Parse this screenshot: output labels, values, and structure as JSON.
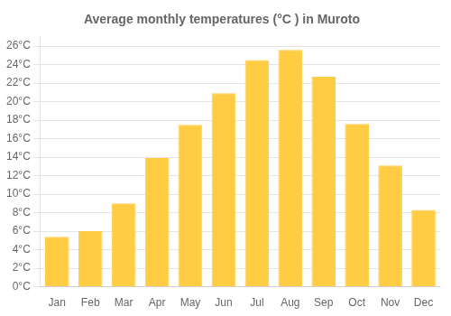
{
  "chart_data": {
    "type": "bar",
    "title": "Average monthly temperatures (°C ) in Muroto",
    "categories": [
      "Jan",
      "Feb",
      "Mar",
      "Apr",
      "May",
      "Jun",
      "Jul",
      "Aug",
      "Sep",
      "Oct",
      "Nov",
      "Dec"
    ],
    "values": [
      5.4,
      6.0,
      9.0,
      13.9,
      17.5,
      20.9,
      24.5,
      25.6,
      22.7,
      17.6,
      13.1,
      8.3
    ],
    "color": "#FFCC44",
    "ylim": [
      0,
      27
    ],
    "yticks": [
      {
        "value": 0,
        "label": "0°C"
      },
      {
        "value": 2,
        "label": "2°C"
      },
      {
        "value": 4,
        "label": "4°C"
      },
      {
        "value": 6,
        "label": "6°C"
      },
      {
        "value": 8,
        "label": "8°C"
      },
      {
        "value": 10,
        "label": "10°C"
      },
      {
        "value": 12,
        "label": "12°C"
      },
      {
        "value": 14,
        "label": "14°C"
      },
      {
        "value": 16,
        "label": "16°C"
      },
      {
        "value": 18,
        "label": "18°C"
      },
      {
        "value": 20,
        "label": "20°C"
      },
      {
        "value": 22,
        "label": "22°C"
      },
      {
        "value": 24,
        "label": "24°C"
      },
      {
        "value": 26,
        "label": "26°C"
      }
    ],
    "grid": true
  }
}
